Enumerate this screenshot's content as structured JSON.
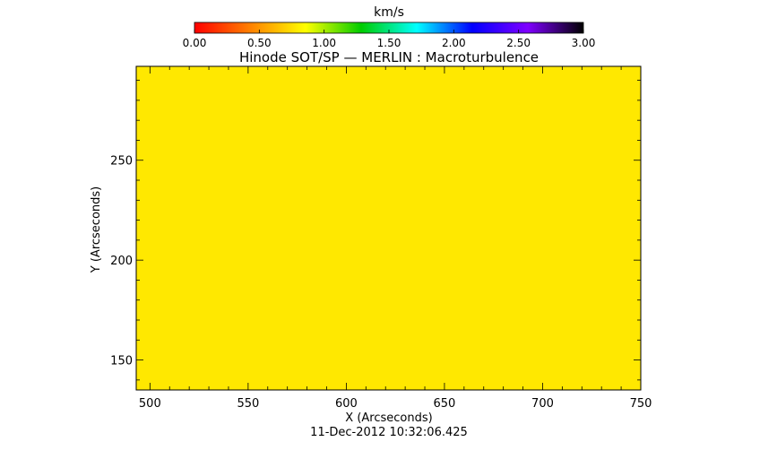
{
  "chart_data": {
    "type": "heatmap",
    "title": "Hinode SOT/SP — MERLIN : Macroturbulence",
    "xlabel": "X (Arcseconds)",
    "ylabel": "Y (Arcseconds)",
    "timestamp": "11-Dec-2012 10:32:06.425",
    "xlim": [
      493,
      750
    ],
    "ylim": [
      135,
      297
    ],
    "x_ticks": [
      500,
      550,
      600,
      650,
      700,
      750
    ],
    "y_ticks": [
      150,
      200,
      250
    ],
    "field_value": 0.73,
    "field_color": "#ffe800",
    "colorbar": {
      "label": "km/s",
      "range": [
        0,
        3
      ],
      "ticks": [
        "0.00",
        "0.50",
        "1.00",
        "1.50",
        "2.00",
        "2.50",
        "3.00"
      ],
      "stops": [
        "#ff0000",
        "#ff8000",
        "#ffff00",
        "#00cc00",
        "#00ffff",
        "#0000ff",
        "#7f00ff",
        "#000000"
      ]
    }
  }
}
